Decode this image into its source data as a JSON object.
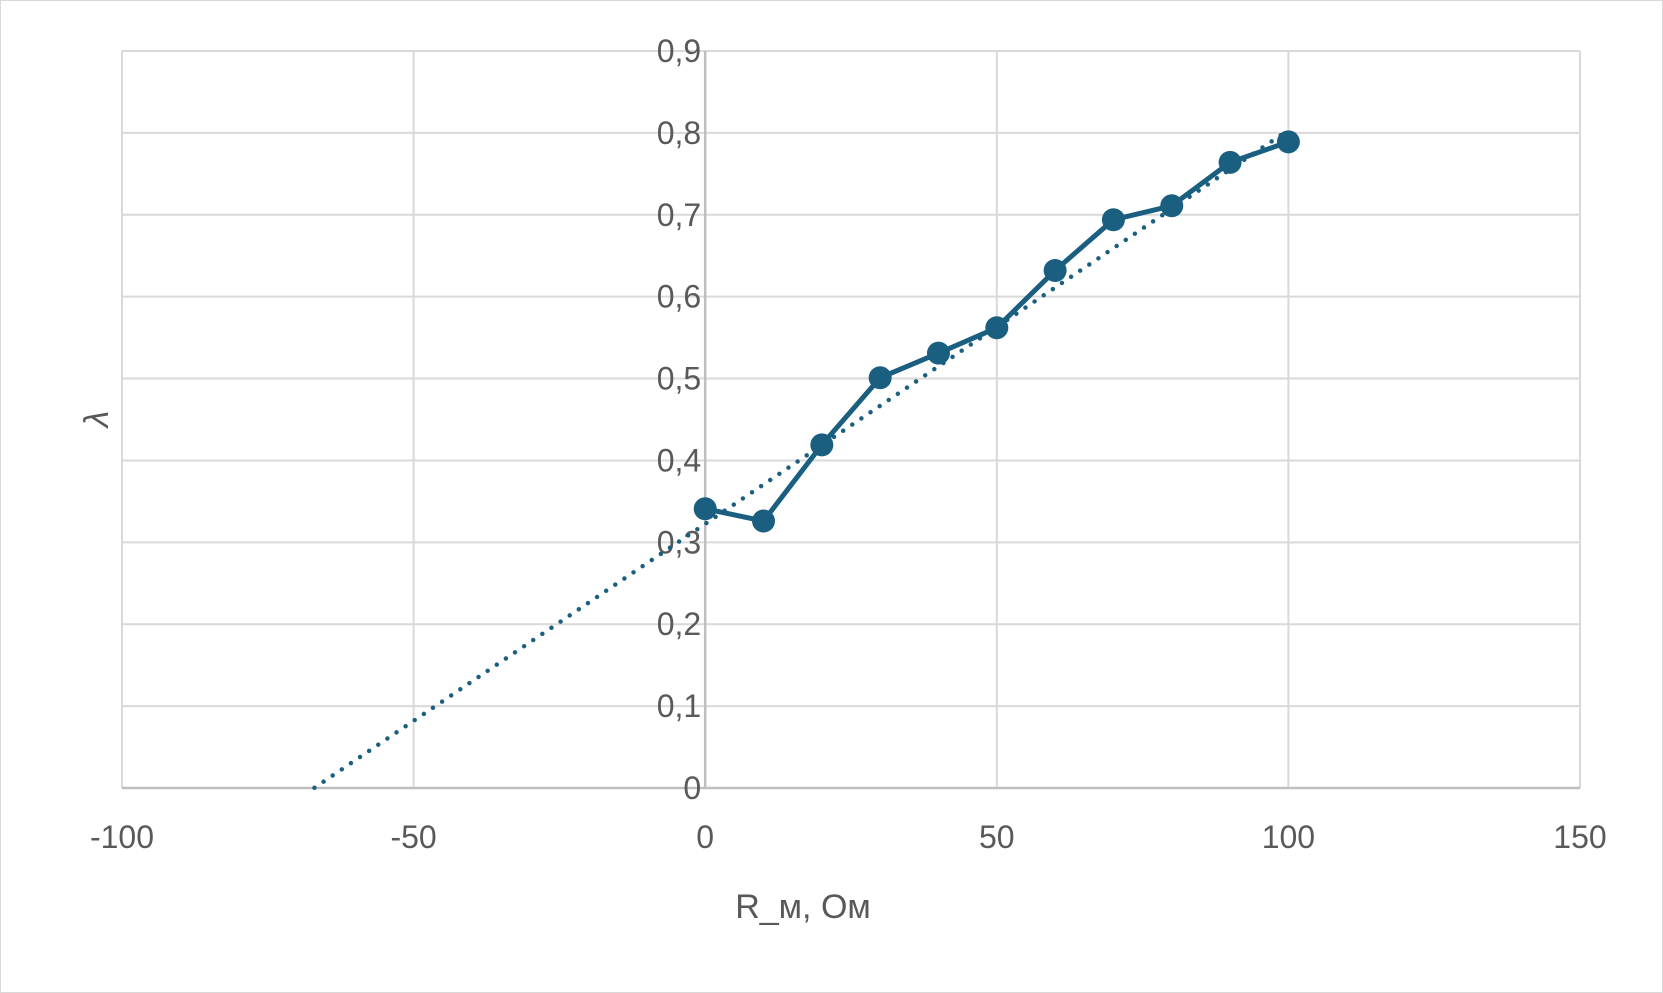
{
  "chart_data": {
    "type": "scatter",
    "xlabel": "R_м, Ом",
    "ylabel": "λ",
    "xlim": [
      -100,
      150
    ],
    "ylim": [
      0,
      0.9
    ],
    "x_ticks": [
      "-100",
      "-50",
      "0",
      "50",
      "100",
      "150"
    ],
    "y_ticks": [
      "0",
      "0,1",
      "0,2",
      "0,3",
      "0,4",
      "0,5",
      "0,6",
      "0,7",
      "0,8",
      "0,9"
    ],
    "grid": true,
    "series": [
      {
        "style": "line-with-markers",
        "color": "#1a5f7f",
        "x": [
          0,
          10,
          20,
          30,
          40,
          50,
          60,
          70,
          80,
          90,
          100
        ],
        "y": [
          0.341,
          0.326,
          0.419,
          0.501,
          0.531,
          0.562,
          0.632,
          0.694,
          0.711,
          0.764,
          0.789
        ]
      }
    ],
    "trendline": {
      "type": "linear",
      "style": "dotted",
      "color": "#1a5f7f",
      "x_range": [
        -67,
        100
      ],
      "slope": 0.00481,
      "intercept": 0.3225
    }
  }
}
